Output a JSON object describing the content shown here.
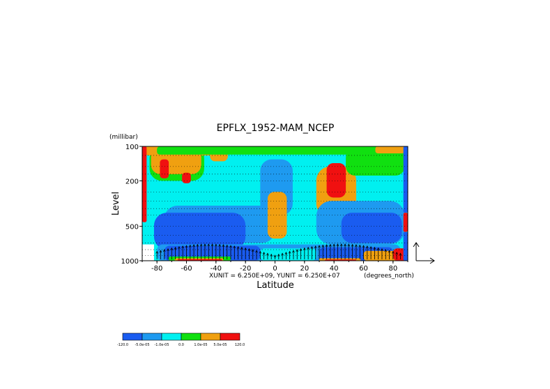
{
  "chart_data": {
    "type": "heatmap",
    "title": "EPFLX_1952-MAM_NCEP",
    "xlabel": "Latitude",
    "ylabel": "Level",
    "yunit_label": "(millibar)",
    "xunit_label": "(degrees_north)",
    "vector_scale_label": "XUNIT = 6.250E+09, YUNIT = 6.250E+07",
    "xlim": [
      -90,
      90
    ],
    "ylim": [
      1000,
      100
    ],
    "y_scale": "log",
    "x_ticks": [
      -80,
      -60,
      -40,
      -20,
      0,
      20,
      40,
      60,
      80
    ],
    "x_tick_labels": [
      "-80",
      "-60",
      "-40",
      "-20",
      "0",
      "20",
      "40",
      "60",
      "80"
    ],
    "y_ticks": [
      100,
      200,
      500,
      1000
    ],
    "y_tick_labels": [
      "100",
      "200",
      "500",
      "1000"
    ],
    "grid": "dotted horizontal lines at pressure levels",
    "colorbar": {
      "placement": "bottom-left",
      "labels": [
        "-120.0",
        "-5.0e-05",
        "-1.0e-05",
        "0.0",
        "1.0e-05",
        "5.0e-05",
        "120.0"
      ],
      "colors": [
        "#1a5cf0",
        "#1e9af0",
        "#00f0f0",
        "#10e010",
        "#f0a010",
        "#f01010"
      ]
    },
    "regions": [
      {
        "cls": 2,
        "lat": [
          -90,
          90
        ],
        "p": [
          100,
          1000
        ],
        "desc": "background"
      },
      {
        "cls": 3,
        "lat": [
          -85,
          -48
        ],
        "p": [
          100,
          200
        ]
      },
      {
        "cls": 4,
        "lat": [
          -84,
          -50
        ],
        "p": [
          102,
          175
        ]
      },
      {
        "cls": 5,
        "lat": [
          -78,
          -72
        ],
        "p": [
          130,
          190
        ]
      },
      {
        "cls": 5,
        "lat": [
          -63,
          -57
        ],
        "p": [
          170,
          210
        ]
      },
      {
        "cls": 4,
        "lat": [
          -88,
          -35
        ],
        "p": [
          100,
          120
        ]
      },
      {
        "cls": 4,
        "lat": [
          -44,
          -32
        ],
        "p": [
          102,
          135
        ]
      },
      {
        "cls": 3,
        "lat": [
          -80,
          80
        ],
        "p": [
          100,
          118
        ]
      },
      {
        "cls": 1,
        "lat": [
          -75,
          0
        ],
        "p": [
          330,
          700
        ]
      },
      {
        "cls": 0,
        "lat": [
          -82,
          -20
        ],
        "p": [
          380,
          800
        ]
      },
      {
        "cls": 1,
        "lat": [
          -10,
          12
        ],
        "p": [
          130,
          400
        ]
      },
      {
        "cls": 4,
        "lat": [
          -5,
          8
        ],
        "p": [
          250,
          640
        ]
      },
      {
        "cls": 4,
        "lat": [
          28,
          55
        ],
        "p": [
          150,
          420
        ]
      },
      {
        "cls": 5,
        "lat": [
          35,
          48
        ],
        "p": [
          140,
          280
        ]
      },
      {
        "cls": 3,
        "lat": [
          48,
          88
        ],
        "p": [
          105,
          180
        ]
      },
      {
        "cls": 4,
        "lat": [
          68,
          88
        ],
        "p": [
          100,
          115
        ]
      },
      {
        "cls": 1,
        "lat": [
          28,
          88
        ],
        "p": [
          300,
          720
        ]
      },
      {
        "cls": 0,
        "lat": [
          45,
          86
        ],
        "p": [
          380,
          700
        ]
      },
      {
        "cls": 1,
        "lat": [
          -80,
          85
        ],
        "p": [
          720,
          1000
        ]
      },
      {
        "cls": 0,
        "lat": [
          -75,
          -10
        ],
        "p": [
          740,
          1000
        ]
      },
      {
        "cls": 0,
        "lat": [
          30,
          80
        ],
        "p": [
          760,
          1000
        ]
      },
      {
        "cls": 2,
        "lat": [
          -10,
          28
        ],
        "p": [
          780,
          1000
        ]
      },
      {
        "cls": 4,
        "lat": [
          60,
          88
        ],
        "p": [
          820,
          1000
        ]
      },
      {
        "cls": 5,
        "lat": [
          80,
          90
        ],
        "p": [
          780,
          1000
        ]
      },
      {
        "cls": 3,
        "lat": [
          -72,
          -30
        ],
        "p": [
          920,
          1000
        ]
      },
      {
        "cls": 4,
        "lat": [
          -68,
          -35
        ],
        "p": [
          950,
          1000
        ]
      },
      {
        "cls": 5,
        "lat": [
          -66,
          -36
        ],
        "p": [
          970,
          1000
        ]
      },
      {
        "cls": 4,
        "lat": [
          30,
          58
        ],
        "p": [
          950,
          1000
        ]
      },
      {
        "cls": 5,
        "lat": [
          34,
          55
        ],
        "p": [
          975,
          1000
        ]
      },
      {
        "cls": 5,
        "lat": [
          -90,
          -87
        ],
        "p": [
          100,
          460
        ]
      },
      {
        "cls": 5,
        "lat": [
          87,
          90
        ],
        "p": [
          380,
          560
        ]
      },
      {
        "cls": 0,
        "lat": [
          87,
          90
        ],
        "p": [
          100,
          380
        ]
      },
      {
        "cls": 0,
        "lat": [
          87,
          90
        ],
        "p": [
          560,
          1000
        ]
      }
    ],
    "masked_region": {
      "lat": [
        -90,
        -82
      ],
      "p": [
        720,
        1000
      ]
    }
  }
}
